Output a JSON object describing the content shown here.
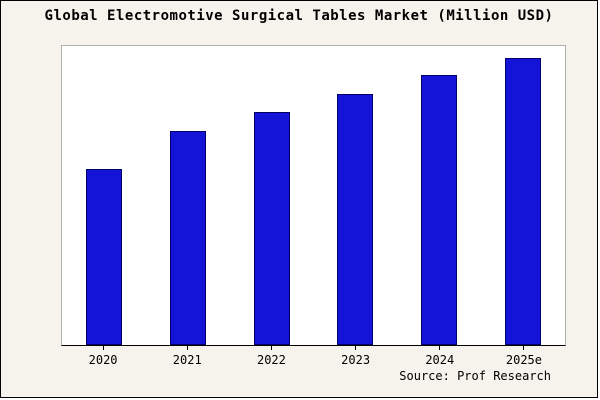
{
  "chart_data": {
    "type": "bar",
    "title": "Global Electromotive Surgical Tables Market (Million USD)",
    "categories": [
      "2020",
      "2021",
      "2022",
      "2023",
      "2024",
      "2025e"
    ],
    "values": [
      180,
      218,
      238,
      256,
      275,
      293
    ],
    "ylim": [
      0,
      305
    ],
    "xlabel": "",
    "ylabel": "",
    "grid": false,
    "legend": false,
    "bar_color": "#1414d6",
    "bar_border_color": "#000066",
    "background_color": "#f5f3ec",
    "plot_background_color": "#ffffff",
    "source": "Source: Prof Research"
  }
}
